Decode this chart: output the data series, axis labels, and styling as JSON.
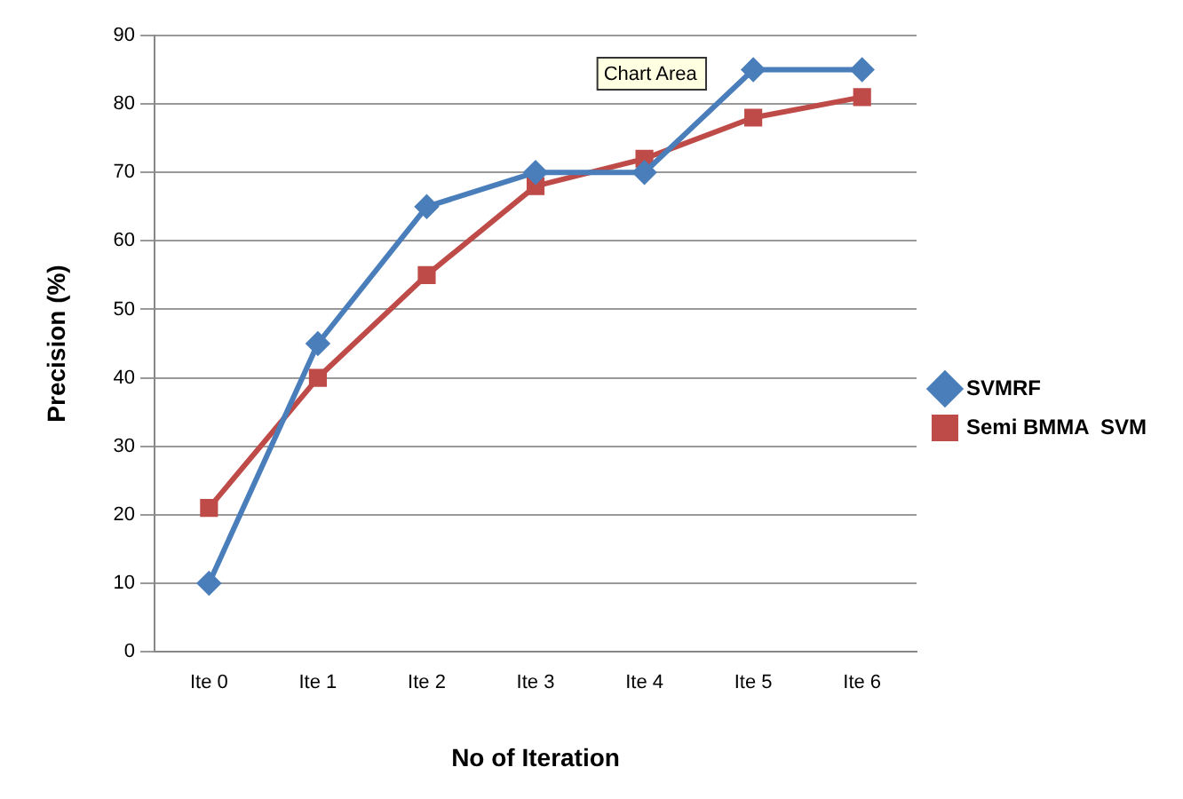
{
  "chart_data": {
    "type": "line",
    "xlabel": "No of Iteration",
    "ylabel": "Precision (%)",
    "categories": [
      "Ite 0",
      "Ite 1",
      "Ite 2",
      "Ite 3",
      "Ite 4",
      "Ite 5",
      "Ite 6"
    ],
    "series": [
      {
        "name": "SVMRF",
        "color": "#4a7ebb",
        "marker": "diamond",
        "values": [
          10,
          45,
          65,
          70,
          70,
          85,
          85
        ]
      },
      {
        "name": "Semi BMMA  SVM",
        "color": "#be4b48",
        "marker": "square",
        "values": [
          21,
          40,
          55,
          68,
          72,
          78,
          81
        ]
      }
    ],
    "ylim": [
      0,
      90
    ],
    "yticks": [
      0,
      10,
      20,
      30,
      40,
      50,
      60,
      70,
      80,
      90
    ],
    "grid": "y",
    "legend": "right",
    "annotations": [
      "Chart Area"
    ]
  }
}
